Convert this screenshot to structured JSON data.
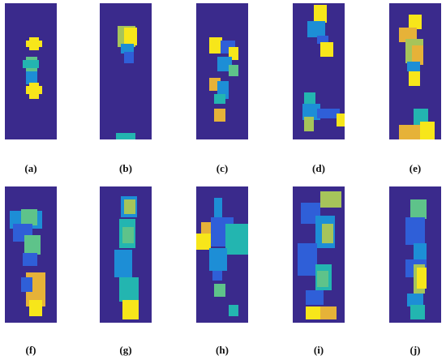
{
  "figure": {
    "colors": {
      "background": "#ffffff",
      "panel_background": "#3a2a8c",
      "colormap": [
        "#3a2a8c",
        "#2f5fd8",
        "#1d8ed6",
        "#23b5b0",
        "#5ec38a",
        "#a6c45a",
        "#e6b238",
        "#f7e61a"
      ]
    },
    "panels": [
      {
        "letter": "a",
        "caption": "(a)"
      },
      {
        "letter": "b",
        "caption": "(b)"
      },
      {
        "letter": "c",
        "caption": "(c)"
      },
      {
        "letter": "d",
        "caption": "(d)"
      },
      {
        "letter": "e",
        "caption": "(e)"
      },
      {
        "letter": "f",
        "caption": "(f)"
      },
      {
        "letter": "g",
        "caption": "(g)"
      },
      {
        "letter": "h",
        "caption": "(h)"
      },
      {
        "letter": "i",
        "caption": "(i)"
      },
      {
        "letter": "j",
        "caption": "(j)"
      }
    ]
  }
}
